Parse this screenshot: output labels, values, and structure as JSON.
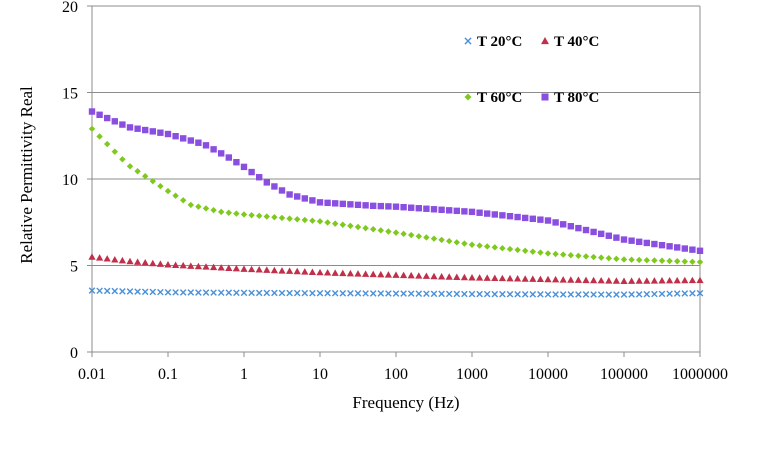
{
  "chart_data": {
    "type": "scatter",
    "xlabel": "Frequency (Hz)",
    "ylabel": "Relative Permittivity Real",
    "x_scale": "log",
    "xlim": [
      0.01,
      1000000
    ],
    "ylim": [
      0,
      20
    ],
    "x_ticks": [
      0.01,
      0.1,
      1,
      10,
      100,
      1000,
      10000,
      100000,
      1000000
    ],
    "x_tick_labels": [
      "0.01",
      "0.1",
      "1",
      "10",
      "100",
      "1000",
      "10000",
      "100000",
      "1000000"
    ],
    "y_ticks": [
      0,
      5,
      10,
      15,
      20
    ],
    "y_tick_labels": [
      "0",
      "5",
      "10",
      "15",
      "20"
    ],
    "grid": "horizontal",
    "legend_placement": "top-right",
    "series": [
      {
        "name": "T 20°C",
        "marker": "x",
        "color": "#4a90d9",
        "anchors": [
          [
            0.01,
            3.55
          ],
          [
            0.1,
            3.45
          ],
          [
            1,
            3.42
          ],
          [
            10,
            3.4
          ],
          [
            100,
            3.38
          ],
          [
            1000,
            3.35
          ],
          [
            10000,
            3.33
          ],
          [
            100000,
            3.32
          ],
          [
            1000000,
            3.4
          ]
        ]
      },
      {
        "name": "T 40°C",
        "marker": "triangle",
        "color": "#c0304a",
        "anchors": [
          [
            0.01,
            5.5
          ],
          [
            0.03,
            5.25
          ],
          [
            0.1,
            5.05
          ],
          [
            1,
            4.8
          ],
          [
            10,
            4.6
          ],
          [
            100,
            4.45
          ],
          [
            1000,
            4.3
          ],
          [
            10000,
            4.2
          ],
          [
            100000,
            4.1
          ],
          [
            1000000,
            4.15
          ]
        ]
      },
      {
        "name": "T 60°C",
        "marker": "diamond",
        "color": "#7fc91f",
        "anchors": [
          [
            0.01,
            12.9
          ],
          [
            0.03,
            10.8
          ],
          [
            0.1,
            9.3
          ],
          [
            0.2,
            8.5
          ],
          [
            0.5,
            8.1
          ],
          [
            1,
            7.95
          ],
          [
            10,
            7.55
          ],
          [
            100,
            6.9
          ],
          [
            1000,
            6.2
          ],
          [
            10000,
            5.7
          ],
          [
            100000,
            5.35
          ],
          [
            1000000,
            5.2
          ]
        ]
      },
      {
        "name": "T 80°C",
        "marker": "square",
        "color": "#8a4fe0",
        "anchors": [
          [
            0.01,
            13.9
          ],
          [
            0.03,
            13.0
          ],
          [
            0.1,
            12.6
          ],
          [
            0.3,
            12.0
          ],
          [
            0.6,
            11.3
          ],
          [
            1,
            10.7
          ],
          [
            2,
            9.8
          ],
          [
            4,
            9.1
          ],
          [
            10,
            8.65
          ],
          [
            50,
            8.45
          ],
          [
            100,
            8.4
          ],
          [
            1000,
            8.1
          ],
          [
            10000,
            7.6
          ],
          [
            100000,
            6.5
          ],
          [
            1000000,
            5.85
          ]
        ]
      }
    ]
  }
}
